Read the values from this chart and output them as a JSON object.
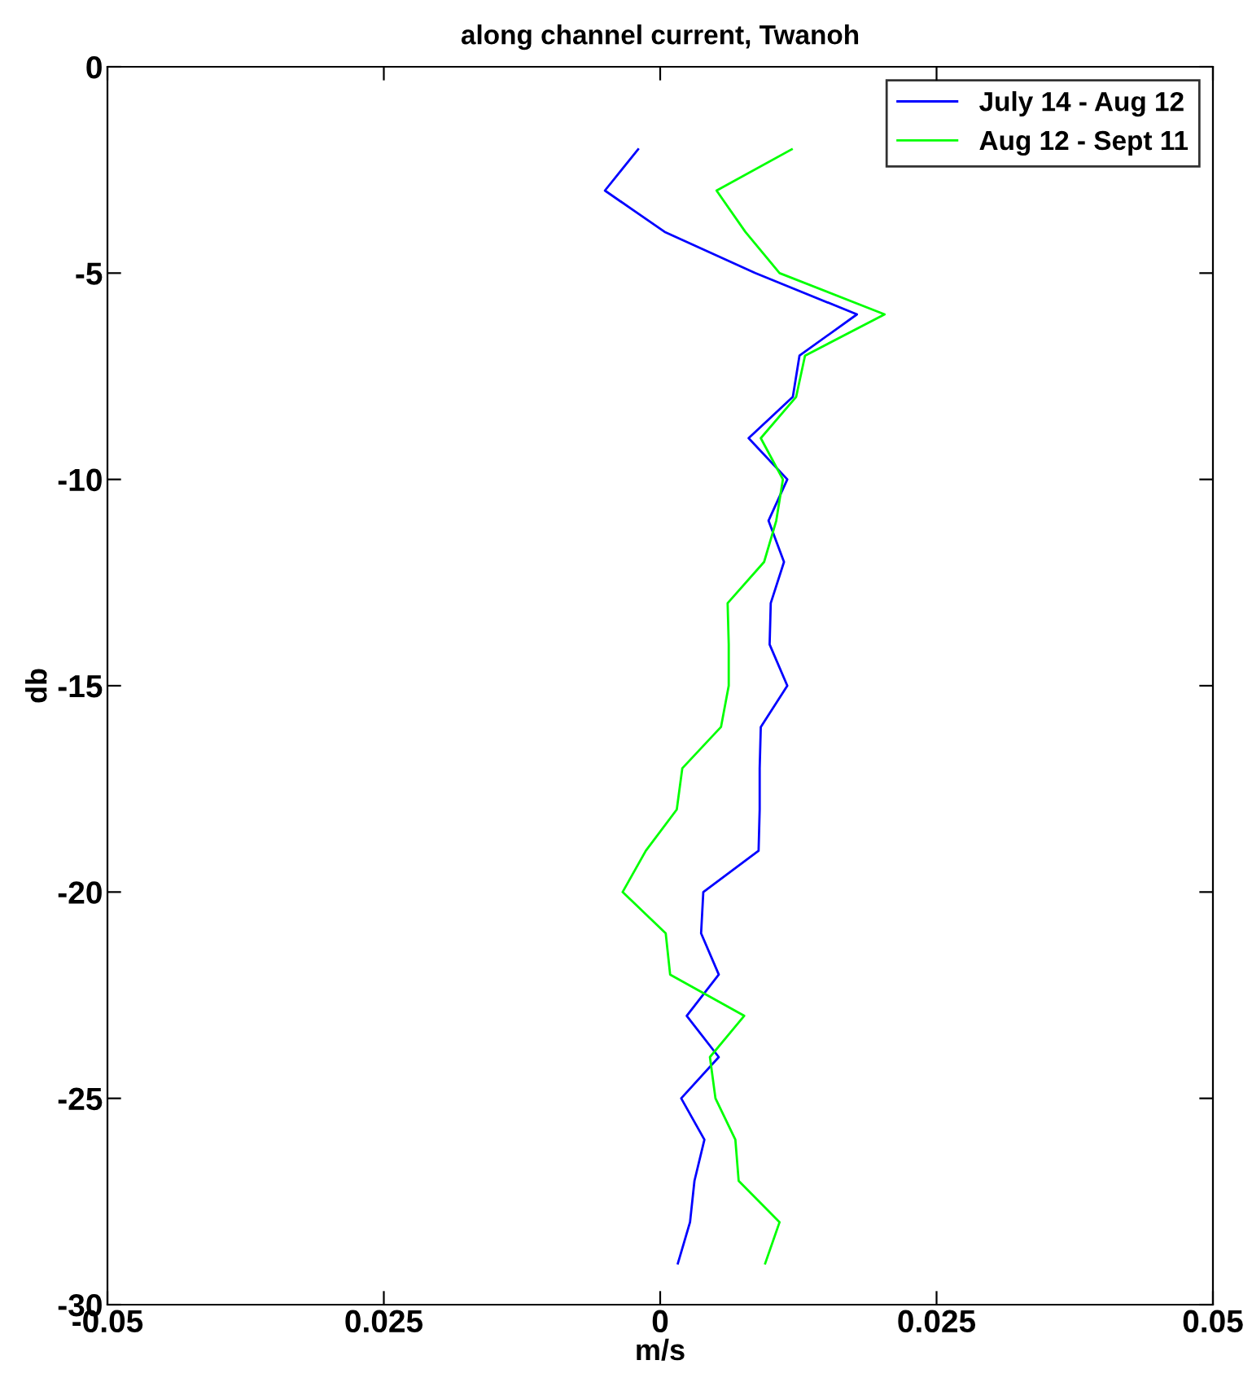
{
  "chart_data": {
    "type": "line",
    "title": "along channel current, Twanoh",
    "xlabel": "m/s",
    "ylabel": "db",
    "xlim": [
      -0.05,
      0.05
    ],
    "xticks": [
      -0.05,
      {
        "value": -0.025,
        "label": "0.025"
      },
      0,
      0.025,
      0.05
    ],
    "ylim": [
      -30,
      0
    ],
    "yticks": [
      -30,
      -25,
      -20,
      -15,
      -10,
      -5,
      0
    ],
    "grid": false,
    "legend": "top right",
    "marker": "none",
    "line_style": "solid",
    "series": [
      {
        "name": "July 14 - Aug 12",
        "color": "#0000ff",
        "x": [
          -0.002,
          -0.005,
          0.0004,
          0.0086,
          0.0178,
          0.0126,
          0.012,
          0.008,
          0.0115,
          0.0098,
          0.0112,
          0.01,
          0.0099,
          0.0115,
          0.0091,
          0.009,
          0.009,
          0.0089,
          0.0039,
          0.0037,
          0.0053,
          0.0024,
          0.0053,
          0.0019,
          0.004,
          0.0031,
          0.0027,
          0.0016
        ],
        "values": [
          -2,
          -3,
          -4,
          -5,
          -6,
          -7,
          -8,
          -9,
          -10,
          -11,
          -12,
          -13,
          -14,
          -15,
          -16,
          -17,
          -18,
          -19,
          -20,
          -21,
          -22,
          -23,
          -24,
          -25,
          -26,
          -27,
          -28,
          -29
        ]
      },
      {
        "name": "Aug 12 - Sept 11",
        "color": "#00ff00",
        "x": [
          0.0119,
          0.0051,
          0.0077,
          0.0108,
          0.0203,
          0.0131,
          0.0123,
          0.0091,
          0.0111,
          0.0105,
          0.0094,
          0.0061,
          0.0062,
          0.0062,
          0.0055,
          0.002,
          0.0015,
          -0.0013,
          -0.0034,
          0.0005,
          0.0009,
          0.0076,
          0.0045,
          0.005,
          0.0068,
          0.0071,
          0.0108,
          0.0095
        ],
        "values": [
          -2,
          -3,
          -4,
          -5,
          -6,
          -7,
          -8,
          -9,
          -10,
          -11,
          -12,
          -13,
          -14,
          -15,
          -16,
          -17,
          -18,
          -19,
          -20,
          -21,
          -22,
          -23,
          -24,
          -25,
          -26,
          -27,
          -28,
          -29
        ]
      }
    ]
  }
}
